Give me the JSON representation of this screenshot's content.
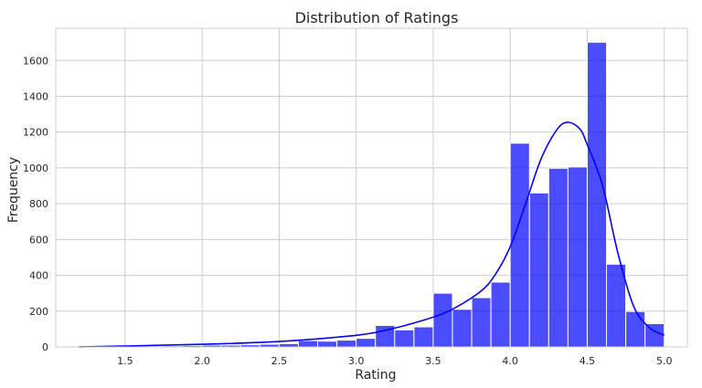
{
  "chart_data": {
    "type": "bar",
    "title": "Distribution of Ratings",
    "xlabel": "Rating",
    "ylabel": "Frequency",
    "xlim": [
      1.05,
      5.15
    ],
    "ylim": [
      0,
      1780
    ],
    "grid": true,
    "bin_width": 0.125,
    "xticks": [
      1.5,
      2.0,
      2.5,
      3.0,
      3.5,
      4.0,
      4.5,
      5.0
    ],
    "xtick_labels": [
      "1.5",
      "2.0",
      "2.5",
      "3.0",
      "3.5",
      "4.0",
      "4.5",
      "5.0"
    ],
    "yticks": [
      0,
      200,
      400,
      600,
      800,
      1000,
      1200,
      1400,
      1600
    ],
    "ytick_labels": [
      "0",
      "200",
      "400",
      "600",
      "800",
      "1000",
      "1200",
      "1400",
      "1600"
    ],
    "bins": [
      {
        "x0": 1.25,
        "value": 2
      },
      {
        "x0": 1.375,
        "value": 3
      },
      {
        "x0": 1.5,
        "value": 4
      },
      {
        "x0": 1.625,
        "value": 5
      },
      {
        "x0": 1.75,
        "value": 6
      },
      {
        "x0": 1.875,
        "value": 8
      },
      {
        "x0": 2.0,
        "value": 10
      },
      {
        "x0": 2.125,
        "value": 10
      },
      {
        "x0": 2.25,
        "value": 12
      },
      {
        "x0": 2.375,
        "value": 15
      },
      {
        "x0": 2.5,
        "value": 18
      },
      {
        "x0": 2.625,
        "value": 35
      },
      {
        "x0": 2.75,
        "value": 32
      },
      {
        "x0": 2.875,
        "value": 38
      },
      {
        "x0": 3.0,
        "value": 48
      },
      {
        "x0": 3.125,
        "value": 120
      },
      {
        "x0": 3.25,
        "value": 95
      },
      {
        "x0": 3.375,
        "value": 112
      },
      {
        "x0": 3.5,
        "value": 300
      },
      {
        "x0": 3.625,
        "value": 210
      },
      {
        "x0": 3.75,
        "value": 275
      },
      {
        "x0": 3.875,
        "value": 362
      },
      {
        "x0": 4.0,
        "value": 1138
      },
      {
        "x0": 4.125,
        "value": 860
      },
      {
        "x0": 4.25,
        "value": 998
      },
      {
        "x0": 4.375,
        "value": 1005
      },
      {
        "x0": 4.5,
        "value": 1702
      },
      {
        "x0": 4.625,
        "value": 462
      },
      {
        "x0": 4.75,
        "value": 198
      },
      {
        "x0": 4.875,
        "value": 130
      }
    ],
    "kde": {
      "x": [
        1.2,
        1.5,
        2.0,
        2.5,
        3.0,
        3.2,
        3.4,
        3.6,
        3.8,
        3.9,
        4.0,
        4.1,
        4.2,
        4.3,
        4.37,
        4.45,
        4.5,
        4.6,
        4.7,
        4.8,
        4.9,
        5.0
      ],
      "y": [
        0,
        5,
        15,
        30,
        65,
        95,
        140,
        200,
        305,
        400,
        560,
        800,
        1050,
        1210,
        1255,
        1220,
        1130,
        900,
        520,
        230,
        110,
        65
      ]
    },
    "colors": {
      "bar_fill": "#0000ff",
      "bar_opacity": 0.7,
      "bar_edge": "#ffffff",
      "kde_line": "#0000ff",
      "grid": "#cccccc",
      "frame": "#cccccc"
    }
  }
}
